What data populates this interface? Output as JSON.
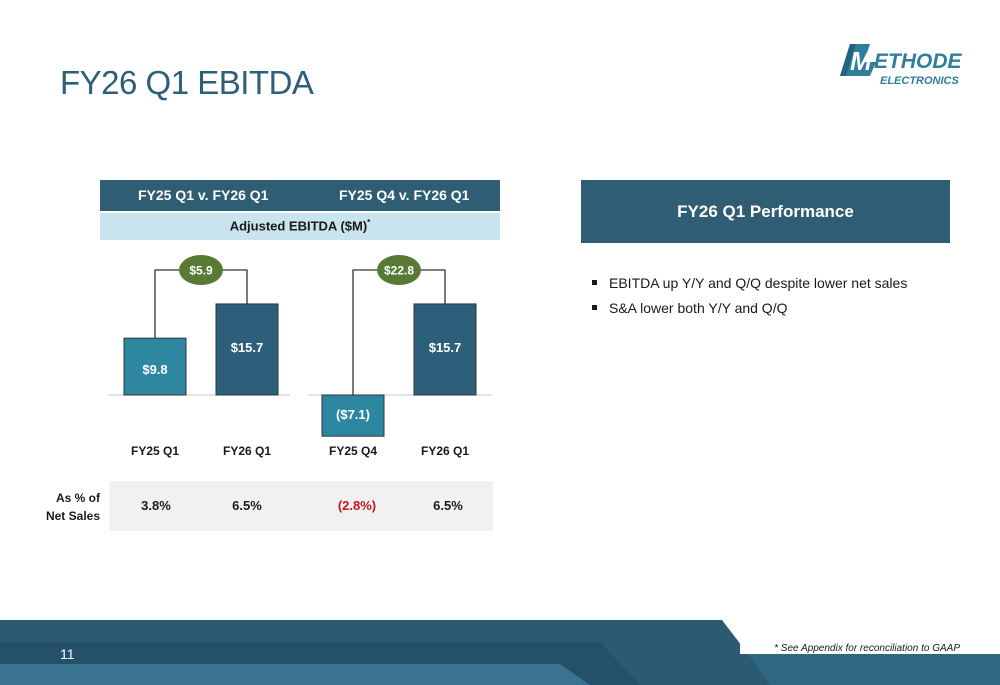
{
  "slide": {
    "title": "FY26 Q1 EBITDA",
    "page_number": "11",
    "footnote": "* See Appendix for reconciliation to GAAP"
  },
  "logo": {
    "word1_initial": "M",
    "word1_rest": "ETHODE",
    "word2": "ELECTRONICS"
  },
  "chart_header": {
    "left_title": "FY25 Q1 v. FY26 Q1",
    "right_title": "FY25 Q4 v. FY26 Q1",
    "metric_label": "Adjusted EBITDA ($M)",
    "metric_marker": "*"
  },
  "chart_data": {
    "type": "bar",
    "title": "Adjusted EBITDA ($M)",
    "categories": [
      "FY25 Q1",
      "FY26 Q1",
      "FY25 Q4",
      "FY26 Q1"
    ],
    "values": [
      9.8,
      15.7,
      -7.1,
      15.7
    ],
    "value_labels": [
      "$9.8",
      "$15.7",
      "($7.1)",
      "$15.7"
    ],
    "comparisons": [
      {
        "from_index": 0,
        "to_index": 1,
        "label": "$5.9"
      },
      {
        "from_index": 2,
        "to_index": 3,
        "label": "$22.8"
      }
    ],
    "colors": {
      "prior": "#2e87a1",
      "current": "#2c5f7a",
      "bubble": "#587a34"
    }
  },
  "net_sales_row": {
    "label_line1": "As % of",
    "label_line2": "Net Sales",
    "values": [
      "3.8%",
      "6.5%",
      "(2.8%)",
      "6.5%"
    ]
  },
  "performance": {
    "title": "FY26 Q1 Performance",
    "bullets": [
      "EBITDA up Y/Y and Q/Q despite lower net sales",
      "S&A lower both Y/Y and Q/Q"
    ]
  },
  "colors": {
    "title": "#2c5f7a",
    "header_dark": "#2f5d73",
    "header_light": "#c9e3ef",
    "negative": "#c0161c"
  }
}
